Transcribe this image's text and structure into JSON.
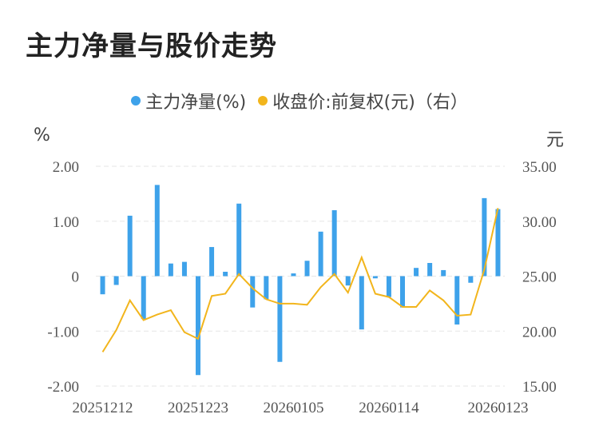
{
  "title": "主力净量与股价走势",
  "legend": {
    "bar_label": "主力净量(%)",
    "line_label": "收盘价:前复权(元)（右）"
  },
  "units": {
    "left": "%",
    "right": "元"
  },
  "colors": {
    "bar": "#3ea2ea",
    "line": "#f2b51c",
    "grid": "#e6e6e6"
  },
  "chart_data": {
    "type": "bar+line",
    "title": "主力净量与股价走势",
    "x_tick_labels": [
      "20251212",
      "20251223",
      "20260105",
      "20260114",
      "20260123"
    ],
    "y_left": {
      "label": "%",
      "range": [
        -2.0,
        2.0
      ],
      "ticks": [
        "2.00",
        "1.00",
        "0",
        "-1.00",
        "-2.00"
      ]
    },
    "y_right": {
      "label": "元",
      "range": [
        15.0,
        35.0
      ],
      "ticks": [
        "35.00",
        "30.00",
        "25.00",
        "20.00",
        "15.00"
      ]
    },
    "grid": true,
    "legend_position": "top-center",
    "series": [
      {
        "name": "主力净量(%)",
        "type": "bar",
        "axis": "left",
        "values": [
          -0.33,
          -0.16,
          1.1,
          -0.78,
          1.66,
          0.23,
          0.26,
          -1.8,
          0.53,
          0.08,
          1.32,
          -0.57,
          -0.42,
          -1.56,
          0.05,
          0.28,
          0.81,
          1.2,
          -0.17,
          -0.97,
          -0.04,
          -0.38,
          -0.57,
          0.15,
          0.24,
          0.11,
          -0.88,
          -0.12,
          1.42,
          1.22
        ]
      },
      {
        "name": "收盘价:前复权(元)（右）",
        "type": "line",
        "axis": "right",
        "values": [
          18.1,
          20.1,
          22.8,
          21.0,
          21.5,
          21.9,
          19.9,
          19.3,
          23.2,
          23.4,
          25.2,
          23.9,
          22.9,
          22.5,
          22.5,
          22.4,
          24.0,
          25.2,
          23.5,
          26.7,
          23.4,
          23.1,
          22.2,
          22.2,
          23.7,
          22.8,
          21.4,
          21.5,
          25.6,
          31.2
        ]
      }
    ]
  }
}
